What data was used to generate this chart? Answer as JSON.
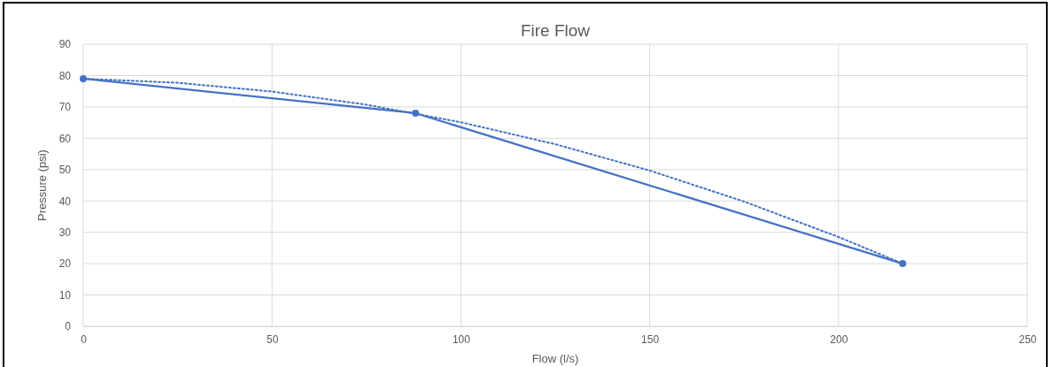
{
  "chart_data": {
    "type": "line",
    "title": "Fire Flow",
    "xlabel": "Flow (l/s)",
    "ylabel": "Pressure (psi)",
    "xlim": [
      0,
      250
    ],
    "xticks": [
      0,
      50,
      100,
      150,
      200,
      250
    ],
    "ylim": [
      0,
      90
    ],
    "yticks": [
      0,
      10,
      20,
      30,
      40,
      50,
      60,
      70,
      80,
      90
    ],
    "grid": true,
    "series": [
      {
        "color": "#4472c4",
        "x": [
          0,
          88,
          217
        ],
        "values": [
          79,
          68,
          20
        ],
        "marker": "circle",
        "line_style": "solid"
      },
      {
        "color": "#4472c4",
        "x": [
          0,
          25,
          50,
          75,
          100,
          125,
          150,
          175,
          200,
          217
        ],
        "values": [
          79,
          77.7,
          74.9,
          70.7,
          65.1,
          58.1,
          49.7,
          39.8,
          28.5,
          20
        ],
        "marker": "none",
        "line_style": "dotted"
      }
    ]
  }
}
